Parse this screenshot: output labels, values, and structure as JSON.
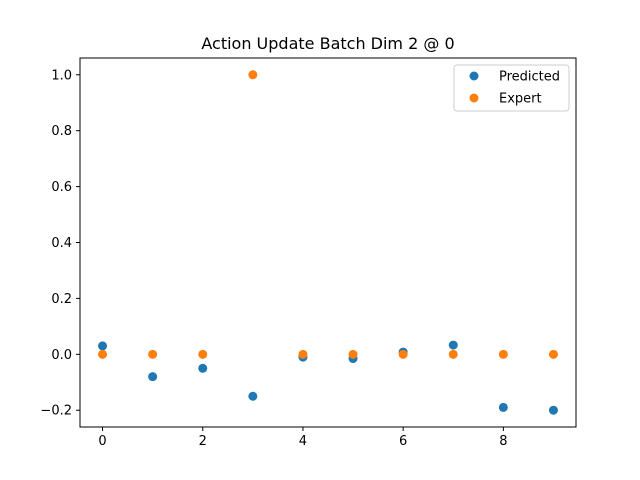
{
  "chart_data": {
    "type": "scatter",
    "title": "Action Update Batch Dim 2 @ 0",
    "xlabel": "",
    "ylabel": "",
    "xlim": [
      -0.45,
      9.45
    ],
    "ylim": [
      -0.26,
      1.06
    ],
    "xticks": [
      0,
      2,
      4,
      6,
      8
    ],
    "xtick_labels": [
      "0",
      "2",
      "4",
      "6",
      "8"
    ],
    "yticks": [
      -0.2,
      0.0,
      0.2,
      0.4,
      0.6,
      0.8,
      1.0
    ],
    "ytick_labels": [
      "−0.2",
      "0.0",
      "0.2",
      "0.4",
      "0.6",
      "0.8",
      "1.0"
    ],
    "grid": false,
    "legend_position": "top-right",
    "series": [
      {
        "name": "Predicted",
        "color": "#1f77b4",
        "x": [
          0,
          1,
          2,
          3,
          4,
          5,
          6,
          7,
          8,
          9
        ],
        "y": [
          0.03,
          -0.08,
          -0.05,
          -0.15,
          -0.01,
          -0.015,
          0.008,
          0.033,
          -0.19,
          -0.2
        ]
      },
      {
        "name": "Expert",
        "color": "#ff7f0e",
        "x": [
          0,
          1,
          2,
          3,
          4,
          5,
          6,
          7,
          8,
          9
        ],
        "y": [
          0,
          0,
          0,
          1,
          0,
          0,
          0,
          0,
          0,
          0
        ]
      }
    ]
  }
}
